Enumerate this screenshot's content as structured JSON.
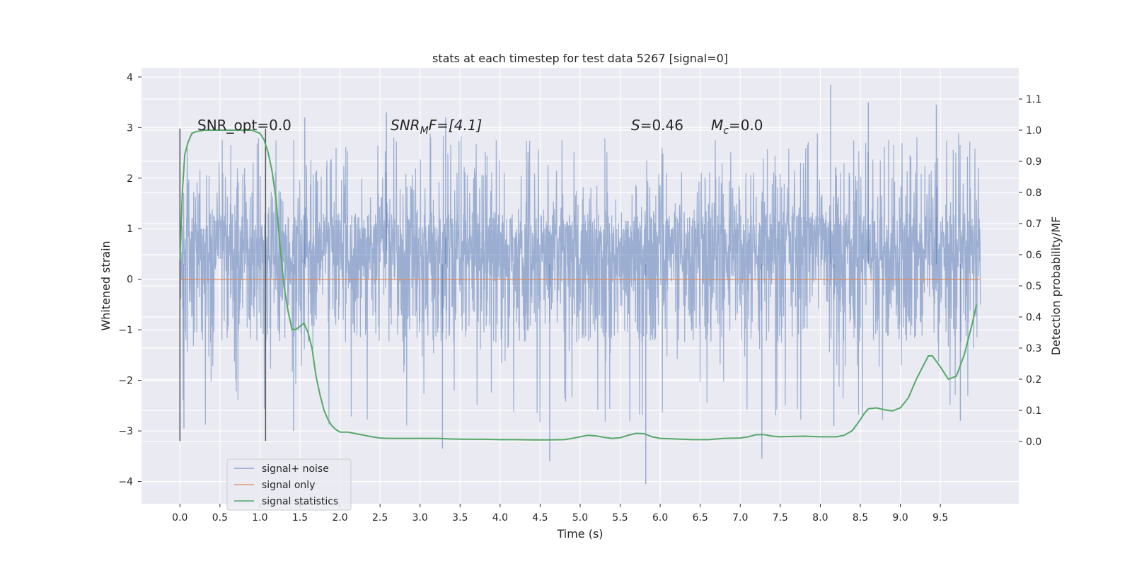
{
  "chart_data": {
    "type": "line",
    "title": "stats at each timestep for test data 5267 [signal=0]",
    "xlabel": "Time (s)",
    "ylabel_left": "Whitened strain",
    "ylabel_right": "Detection probability/MF",
    "xlim": [
      -0.48,
      10.48
    ],
    "ylim_left": [
      -4.44,
      4.18
    ],
    "ylim_right": [
      -0.2,
      1.2
    ],
    "x_ticks": [
      "0.0",
      "0.5",
      "1.0",
      "1.5",
      "2.0",
      "2.5",
      "3.0",
      "3.5",
      "4.0",
      "4.5",
      "5.0",
      "5.5",
      "6.0",
      "6.5",
      "7.0",
      "7.5",
      "8.0",
      "8.5",
      "9.0",
      "9.5"
    ],
    "y_ticks_left": [
      "4",
      "3",
      "2",
      "1",
      "0",
      "−1",
      "−2",
      "−3",
      "−4"
    ],
    "y_ticks_right": [
      "1.1",
      "1.0",
      "0.9",
      "0.8",
      "0.7",
      "0.6",
      "0.5",
      "0.4",
      "0.3",
      "0.2",
      "0.1",
      "0.0"
    ],
    "grid": true,
    "legend_placement": "lower-left",
    "annotations": {
      "snr_opt": "SNR_opt=0.0",
      "snr_mf_main": "SNR",
      "snr_mf_sub": "M",
      "snr_mf_rest": "F=[4.1]",
      "s_main": "S",
      "s_rest": "=0.46",
      "mc_main": "M",
      "mc_sub": "c",
      "mc_rest": "=0.0"
    },
    "vertical_markers_x": [
      0.0,
      1.07
    ],
    "series": [
      {
        "name": "signal+ noise",
        "color": "#4c72b0",
        "axis": "left",
        "style": "dense noise trace",
        "t_range": [
          0.0,
          10.0
        ],
        "typical_envelope": [
          -1.3,
          1.6
        ],
        "notable_peaks": [
          [
            1.56,
            3.2
          ],
          [
            2.58,
            3.3
          ],
          [
            3.32,
            3.2
          ],
          [
            8.13,
            3.85
          ],
          [
            8.6,
            3.5
          ],
          [
            9.45,
            3.45
          ]
        ],
        "notable_troughs": [
          [
            0.05,
            -2.95
          ],
          [
            1.42,
            -3.0
          ],
          [
            3.28,
            -3.35
          ],
          [
            4.62,
            -3.6
          ],
          [
            5.82,
            -4.05
          ],
          [
            7.27,
            -3.55
          ],
          [
            8.17,
            -2.9
          ],
          [
            9.75,
            -2.8
          ]
        ]
      },
      {
        "name": "signal only",
        "color": "#dd8452",
        "axis": "left",
        "x": [
          0.0,
          10.0
        ],
        "y": [
          0.0,
          0.0
        ]
      },
      {
        "name": "signal statistics",
        "color": "#55a868",
        "axis": "right",
        "x": [
          0.0,
          0.03,
          0.06,
          0.1,
          0.15,
          0.2,
          0.3,
          0.4,
          0.5,
          0.6,
          0.7,
          0.8,
          0.9,
          0.95,
          1.0,
          1.05,
          1.1,
          1.15,
          1.2,
          1.25,
          1.3,
          1.35,
          1.4,
          1.45,
          1.5,
          1.55,
          1.6,
          1.65,
          1.7,
          1.75,
          1.8,
          1.85,
          1.9,
          1.95,
          2.0,
          2.1,
          2.2,
          2.3,
          2.4,
          2.5,
          2.6,
          2.8,
          3.0,
          3.2,
          3.4,
          3.6,
          3.8,
          4.0,
          4.2,
          4.4,
          4.6,
          4.8,
          4.9,
          5.0,
          5.1,
          5.2,
          5.3,
          5.4,
          5.5,
          5.6,
          5.7,
          5.8,
          5.9,
          6.0,
          6.2,
          6.4,
          6.6,
          6.8,
          7.0,
          7.1,
          7.2,
          7.3,
          7.4,
          7.5,
          7.6,
          7.8,
          8.0,
          8.2,
          8.3,
          8.4,
          8.5,
          8.55,
          8.6,
          8.7,
          8.8,
          8.9,
          9.0,
          9.1,
          9.2,
          9.3,
          9.35,
          9.4,
          9.5,
          9.6,
          9.7,
          9.8,
          9.9,
          9.95
        ],
        "y": [
          0.58,
          0.8,
          0.92,
          0.96,
          0.99,
          0.995,
          1.0,
          1.0,
          1.0,
          1.0,
          1.0,
          1.0,
          1.0,
          0.995,
          0.99,
          0.97,
          0.93,
          0.87,
          0.78,
          0.63,
          0.5,
          0.42,
          0.36,
          0.36,
          0.37,
          0.38,
          0.35,
          0.3,
          0.21,
          0.15,
          0.1,
          0.07,
          0.05,
          0.038,
          0.03,
          0.03,
          0.025,
          0.02,
          0.015,
          0.011,
          0.01,
          0.01,
          0.01,
          0.01,
          0.008,
          0.007,
          0.007,
          0.006,
          0.006,
          0.005,
          0.005,
          0.006,
          0.01,
          0.015,
          0.02,
          0.018,
          0.013,
          0.01,
          0.012,
          0.02,
          0.026,
          0.025,
          0.015,
          0.01,
          0.008,
          0.006,
          0.006,
          0.01,
          0.011,
          0.015,
          0.022,
          0.022,
          0.017,
          0.015,
          0.016,
          0.017,
          0.015,
          0.015,
          0.02,
          0.035,
          0.07,
          0.09,
          0.105,
          0.108,
          0.102,
          0.098,
          0.108,
          0.14,
          0.2,
          0.25,
          0.275,
          0.275,
          0.24,
          0.2,
          0.21,
          0.28,
          0.38,
          0.44
        ]
      }
    ]
  }
}
